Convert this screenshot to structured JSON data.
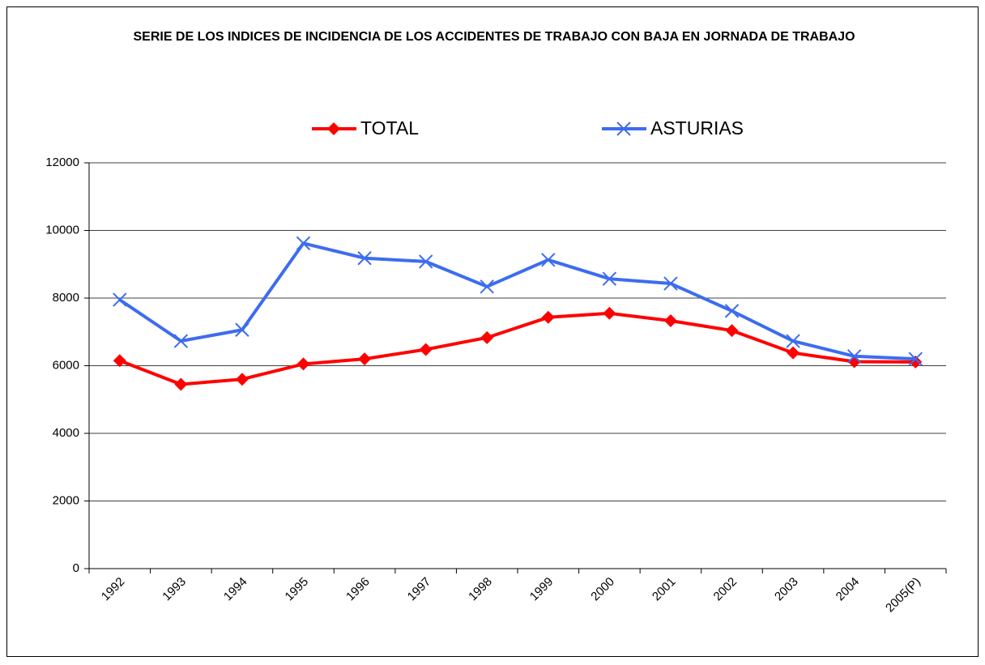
{
  "chart_data": {
    "type": "line",
    "title": "SERIE DE LOS INDICES DE INCIDENCIA DE LOS ACCIDENTES DE TRABAJO CON BAJA EN JORNADA DE TRABAJO",
    "categories": [
      "1992",
      "1993",
      "1994",
      "1995",
      "1996",
      "1997",
      "1998",
      "1999",
      "2000",
      "2001",
      "2002",
      "2003",
      "2004",
      "2005(P)"
    ],
    "series": [
      {
        "name": "TOTAL",
        "color": "#ff0000",
        "marker": "diamond",
        "values": [
          6150,
          5450,
          5600,
          6050,
          6200,
          6480,
          6830,
          7430,
          7550,
          7330,
          7040,
          6380,
          6120,
          6110
        ]
      },
      {
        "name": "ASTURIAS",
        "color": "#3c6cf0",
        "marker": "x",
        "values": [
          7950,
          6730,
          7060,
          9620,
          9180,
          9080,
          8340,
          9130,
          8570,
          8430,
          7620,
          6730,
          6280,
          6200
        ]
      }
    ],
    "ylim": [
      0,
      12000
    ],
    "yticks": [
      0,
      2000,
      4000,
      6000,
      8000,
      10000,
      12000
    ],
    "grid": true,
    "legend": "top"
  }
}
